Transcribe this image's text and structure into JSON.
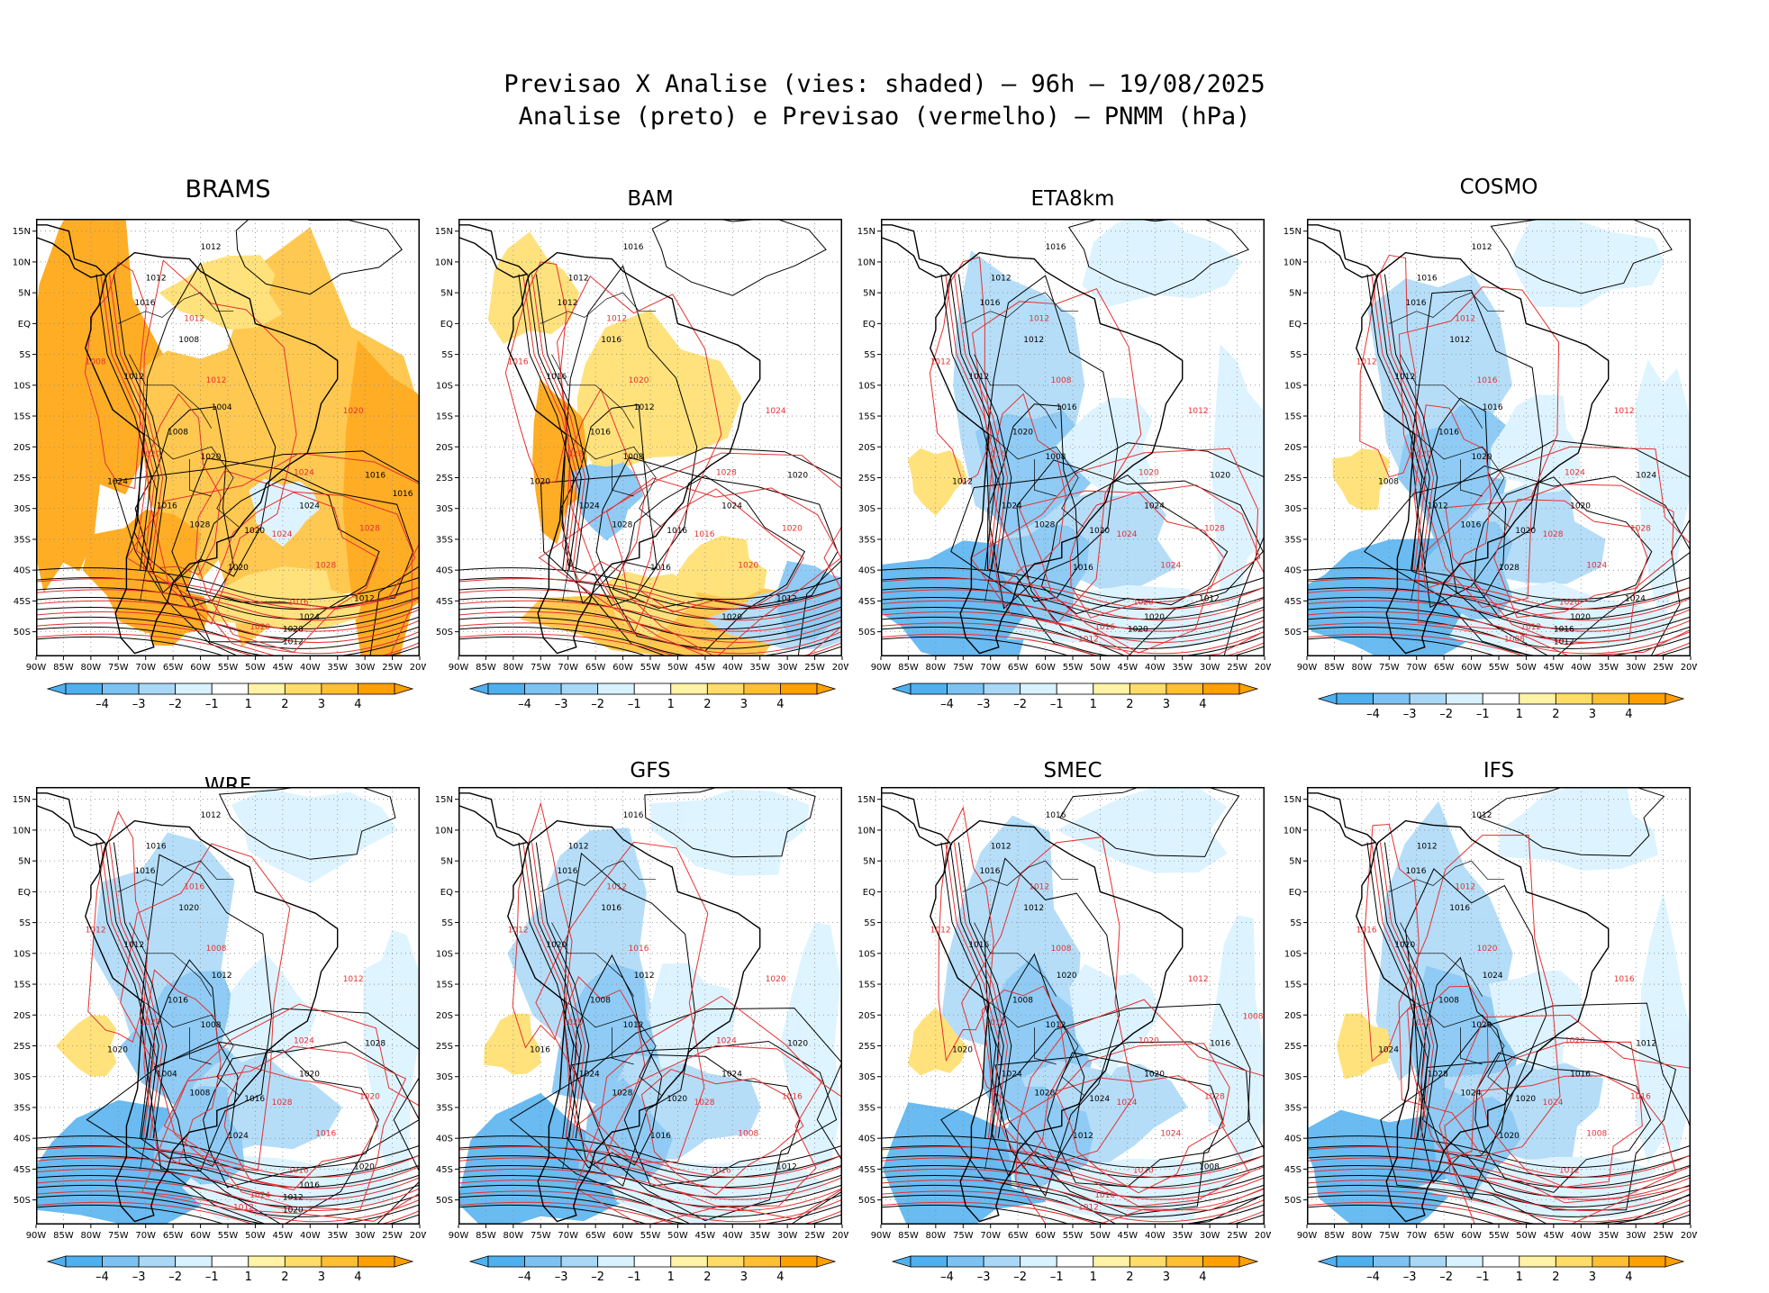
{
  "figure": {
    "title_line1": "Previsao X Analise (vies: shaded) – 96h – 19/08/2025",
    "title_line2": "Analise (preto) e Previsao (vermelho) – PNMM (hPa)"
  },
  "map_axes": {
    "lon_labels": [
      "90W",
      "85W",
      "80W",
      "75W",
      "70W",
      "65W",
      "60W",
      "55W",
      "50W",
      "45W",
      "40W",
      "35W",
      "30W",
      "25W",
      "20W"
    ],
    "lat_labels": [
      "15N",
      "10N",
      "5N",
      "EQ",
      "5S",
      "10S",
      "15S",
      "20S",
      "25S",
      "30S",
      "35S",
      "40S",
      "45S",
      "50S"
    ]
  },
  "colorbar": {
    "tick_labels": [
      "–4",
      "–3",
      "–2",
      "–1",
      "1",
      "2",
      "3",
      "4"
    ],
    "colors": [
      "#4fb0ef",
      "#7cc3f3",
      "#a9d8f7",
      "#d8f2ff",
      "#ffffff",
      "#fff3a6",
      "#ffdd66",
      "#ffbf33",
      "#ff9f00"
    ]
  },
  "legend": {
    "analysis_color": "#000000",
    "forecast_color": "#e53030"
  },
  "panels": [
    {
      "title": "BRAMS",
      "bias": "warm",
      "labels_black": [
        "1012",
        "1012",
        "1016",
        "1008",
        "1012",
        "1004",
        "1008",
        "1020",
        "1024",
        "1016",
        "1028",
        "1020",
        "1024",
        "1016",
        "1020",
        "1012",
        "1024",
        "1020",
        "1012",
        "1016"
      ],
      "labels_red": [
        "1012",
        "1008",
        "1012",
        "1020",
        "1020",
        "1024",
        "1024",
        "1028",
        "1028",
        "1016",
        "1020"
      ]
    },
    {
      "title": "BAM",
      "bias": "mixed",
      "labels_black": [
        "1016",
        "1012",
        "1012",
        "1016",
        "1016",
        "1012",
        "1016",
        "1008",
        "1020",
        "1024",
        "1028",
        "1016",
        "1024",
        "1020",
        "1016",
        "1012",
        "1020"
      ],
      "labels_red": [
        "1012",
        "1016",
        "1020",
        "1024",
        "1028",
        "1028",
        "1016",
        "1020",
        "1020"
      ]
    },
    {
      "title": "ETA8km",
      "bias": "cold",
      "labels_black": [
        "1016",
        "1012",
        "1016",
        "1012",
        "1012",
        "1016",
        "1020",
        "1008",
        "1012",
        "1024",
        "1028",
        "1020",
        "1024",
        "1020",
        "1016",
        "1012",
        "1020",
        "1020"
      ],
      "labels_red": [
        "1012",
        "1012",
        "1008",
        "1012",
        "1016",
        "1020",
        "1024",
        "1028",
        "1024",
        "1020",
        "1016",
        "1012"
      ]
    },
    {
      "title": "COSMO",
      "bias": "cold",
      "labels_black": [
        "1012",
        "1016",
        "1016",
        "1012",
        "1012",
        "1016",
        "1016",
        "1020",
        "1008",
        "1012",
        "1016",
        "1020",
        "1020",
        "1024",
        "1028",
        "1024",
        "1020",
        "1016",
        "1012"
      ],
      "labels_red": [
        "1012",
        "1012",
        "1016",
        "1012",
        "1020",
        "1024",
        "1028",
        "1028",
        "1024",
        "1020",
        "1012",
        "1008"
      ]
    },
    {
      "title": "WRF",
      "bias": "cold",
      "labels_black": [
        "1012",
        "1016",
        "1016",
        "1020",
        "1012",
        "1012",
        "1016",
        "1008",
        "1020",
        "1004",
        "1008",
        "1016",
        "1020",
        "1028",
        "1024",
        "1020",
        "1016",
        "1012",
        "1020"
      ],
      "labels_red": [
        "1016",
        "1012",
        "1008",
        "1012",
        "1020",
        "1024",
        "1028",
        "1020",
        "1016",
        "1016",
        "1024",
        "1012"
      ]
    },
    {
      "title": "GFS",
      "bias": "cold",
      "labels_black": [
        "1016",
        "1012",
        "1016",
        "1016",
        "1020",
        "1012",
        "1008",
        "1012",
        "1016",
        "1024",
        "1028",
        "1020",
        "1024",
        "1020",
        "1016",
        "1012"
      ],
      "labels_red": [
        "1012",
        "1012",
        "1016",
        "1020",
        "1020",
        "1024",
        "1028",
        "1016",
        "1008",
        "1016"
      ]
    },
    {
      "title": "SMEC",
      "bias": "cold",
      "labels_black": [
        "1016",
        "1012",
        "1016",
        "1012",
        "1016",
        "1020",
        "1008",
        "1012",
        "1020",
        "1024",
        "1028",
        "1024",
        "1020",
        "1016",
        "1012",
        "1008"
      ],
      "labels_red": [
        "1012",
        "1012",
        "1008",
        "1012",
        "1016",
        "1020",
        "1024",
        "1028",
        "1024",
        "1020",
        "1016",
        "1012",
        "1008"
      ]
    },
    {
      "title": "IFS",
      "bias": "cold",
      "labels_black": [
        "1012",
        "1012",
        "1016",
        "1016",
        "1020",
        "1024",
        "1008",
        "1020",
        "1024",
        "1028",
        "1024",
        "1020",
        "1016",
        "1012",
        "1020"
      ],
      "labels_red": [
        "1012",
        "1016",
        "1020",
        "1016",
        "1028",
        "1020",
        "1024",
        "1016",
        "1008",
        "1012"
      ]
    }
  ]
}
